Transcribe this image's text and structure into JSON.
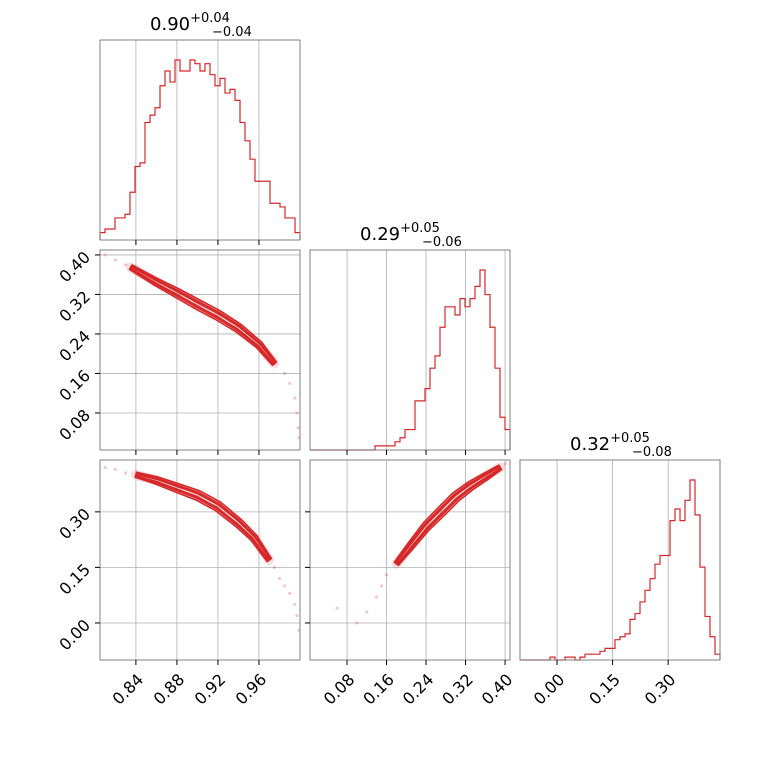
{
  "chart_data": {
    "type": "corner",
    "color": "#d62728",
    "parameters": [
      {
        "median": "0.90",
        "plus": "+0.04",
        "minus": "−0.04",
        "range": [
          0.805,
          1.0
        ],
        "ticks": [
          "0.84",
          "0.88",
          "0.92",
          "0.96"
        ]
      },
      {
        "median": "0.29",
        "plus": "+0.05",
        "minus": "−0.06",
        "range": [
          0.005,
          0.41
        ],
        "ticks": [
          "0.08",
          "0.16",
          "0.24",
          "0.32",
          "0.40"
        ]
      },
      {
        "median": "0.32",
        "plus": "+0.05",
        "minus": "−0.08",
        "range": [
          -0.1,
          0.44
        ],
        "ticks": [
          "0.00",
          "0.15",
          "0.30"
        ]
      }
    ],
    "histograms": [
      [
        2,
        3,
        3,
        6,
        6,
        7,
        13,
        20,
        21,
        32,
        34,
        36,
        42,
        46,
        43,
        49,
        46,
        46,
        49,
        48,
        46,
        48,
        45,
        42,
        44,
        40,
        41,
        38,
        32,
        27,
        22,
        16,
        16,
        16,
        10,
        10,
        9,
        6,
        6,
        2
      ],
      [
        0,
        0,
        0,
        0,
        0,
        0,
        0,
        0,
        0,
        0,
        0,
        0,
        0,
        1,
        1,
        1,
        1,
        2,
        3,
        5,
        5,
        12,
        12,
        15,
        20,
        23,
        30,
        35,
        35,
        33,
        37,
        35,
        37,
        40,
        44,
        38,
        30,
        20,
        8,
        5
      ],
      [
        0,
        0,
        0,
        0,
        0,
        0,
        1,
        0,
        0,
        1,
        1,
        0,
        1,
        2,
        2,
        2,
        3,
        4,
        4,
        7,
        8,
        9,
        14,
        16,
        20,
        24,
        28,
        33,
        36,
        36,
        48,
        52,
        48,
        55,
        62,
        50,
        32,
        15,
        8,
        2
      ]
    ],
    "pairs": [
      {
        "x": 0,
        "y": 1,
        "track": [
          [
            0.835,
            0.375
          ],
          [
            0.86,
            0.345
          ],
          [
            0.88,
            0.323
          ],
          [
            0.9,
            0.3
          ],
          [
            0.92,
            0.278
          ],
          [
            0.94,
            0.252
          ],
          [
            0.96,
            0.218
          ],
          [
            0.975,
            0.18
          ]
        ],
        "scatter": [
          [
            0.81,
            0.4
          ],
          [
            0.82,
            0.39
          ],
          [
            0.83,
            0.38
          ],
          [
            0.975,
            0.18
          ],
          [
            0.985,
            0.16
          ],
          [
            0.99,
            0.14
          ],
          [
            0.995,
            0.11
          ],
          [
            0.997,
            0.08
          ],
          [
            0.998,
            0.05
          ],
          [
            0.999,
            0.03
          ]
        ]
      },
      {
        "x": 0,
        "y": 2,
        "track": [
          [
            0.84,
            0.4
          ],
          [
            0.86,
            0.385
          ],
          [
            0.88,
            0.365
          ],
          [
            0.9,
            0.345
          ],
          [
            0.92,
            0.315
          ],
          [
            0.94,
            0.27
          ],
          [
            0.955,
            0.23
          ],
          [
            0.97,
            0.17
          ]
        ],
        "scatter": [
          [
            0.81,
            0.42
          ],
          [
            0.82,
            0.415
          ],
          [
            0.83,
            0.405
          ],
          [
            0.975,
            0.15
          ],
          [
            0.98,
            0.12
          ],
          [
            0.985,
            0.1
          ],
          [
            0.99,
            0.08
          ],
          [
            0.995,
            0.05
          ],
          [
            0.997,
            0.02
          ],
          [
            0.999,
            -0.02
          ]
        ]
      },
      {
        "x": 1,
        "y": 2,
        "track": [
          [
            0.18,
            0.16
          ],
          [
            0.21,
            0.21
          ],
          [
            0.24,
            0.26
          ],
          [
            0.27,
            0.3
          ],
          [
            0.3,
            0.34
          ],
          [
            0.33,
            0.37
          ],
          [
            0.36,
            0.395
          ],
          [
            0.39,
            0.42
          ]
        ],
        "scatter": [
          [
            0.16,
            0.13
          ],
          [
            0.15,
            0.1
          ],
          [
            0.14,
            0.07
          ],
          [
            0.12,
            0.03
          ],
          [
            0.1,
            0.0
          ],
          [
            0.06,
            0.04
          ],
          [
            0.2,
            0.2
          ],
          [
            0.4,
            0.43
          ]
        ]
      }
    ]
  }
}
